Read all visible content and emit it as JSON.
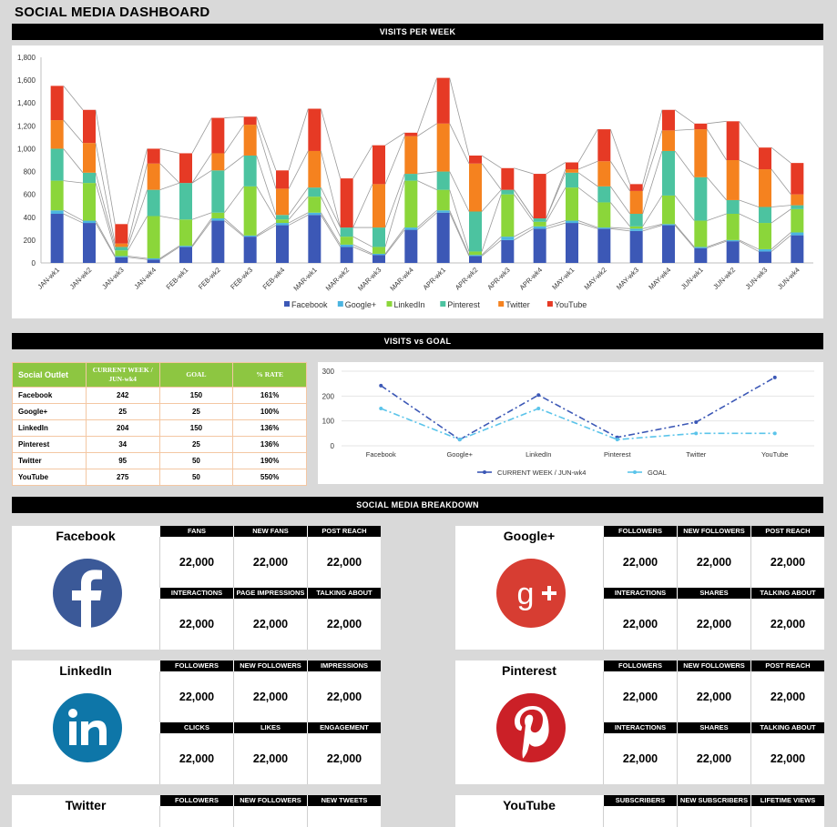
{
  "title": "SOCIAL MEDIA DASHBOARD",
  "sections": {
    "visits_per_week": "VISITS PER WEEK",
    "visits_vs_goal": "VISITS vs GOAL",
    "breakdown": "SOCIAL MEDIA BREAKDOWN"
  },
  "colors": {
    "Facebook": "#3c58b6",
    "Google+": "#4bb4e0",
    "LinkedIn": "#8bd63a",
    "Pinterest": "#4cc3a0",
    "Twitter": "#f5821f",
    "YouTube": "#e63a25",
    "header_green": "#8dc641"
  },
  "chart_data": [
    {
      "type": "bar",
      "stacked": true,
      "categories": [
        "JAN-wk1",
        "JAN-wk2",
        "JAN-wk3",
        "JAN-wk4",
        "FEB-wk1",
        "FEB-wk2",
        "FEB-wk3",
        "FEB-wk4",
        "MAR-wk1",
        "MAR-wk2",
        "MAR-wk3",
        "MAR-wk4",
        "APR-wk1",
        "APR-wk2",
        "APR-wk3",
        "APR-wk4",
        "MAY-wk1",
        "MAY-wk2",
        "MAY-wk3",
        "MAY-wk4",
        "JUN-wk1",
        "JUN-wk2",
        "JUN-wk3",
        "JUN-wk4"
      ],
      "series": [
        {
          "name": "Facebook",
          "values": [
            430,
            350,
            50,
            30,
            140,
            370,
            230,
            330,
            420,
            140,
            70,
            290,
            440,
            60,
            200,
            300,
            350,
            300,
            280,
            330,
            130,
            190,
            100,
            242
          ]
        },
        {
          "name": "Google+",
          "values": [
            30,
            20,
            10,
            10,
            10,
            20,
            10,
            20,
            20,
            20,
            10,
            20,
            20,
            10,
            30,
            20,
            20,
            10,
            20,
            10,
            10,
            10,
            20,
            25
          ]
        },
        {
          "name": "LinkedIn",
          "values": [
            260,
            330,
            50,
            370,
            230,
            50,
            430,
            30,
            140,
            70,
            60,
            410,
            180,
            30,
            370,
            40,
            290,
            220,
            20,
            250,
            230,
            230,
            230,
            204
          ]
        },
        {
          "name": "Pinterest",
          "values": [
            280,
            90,
            30,
            230,
            320,
            370,
            270,
            40,
            80,
            80,
            170,
            60,
            160,
            350,
            40,
            30,
            130,
            140,
            110,
            390,
            380,
            120,
            140,
            34
          ]
        },
        {
          "name": "Twitter",
          "values": [
            250,
            260,
            30,
            230,
            0,
            150,
            270,
            230,
            320,
            0,
            380,
            330,
            420,
            420,
            0,
            0,
            30,
            220,
            200,
            180,
            420,
            350,
            330,
            95
          ]
        },
        {
          "name": "YouTube",
          "values": [
            300,
            290,
            170,
            130,
            260,
            310,
            70,
            160,
            370,
            430,
            340,
            30,
            400,
            70,
            190,
            390,
            60,
            280,
            60,
            180,
            50,
            340,
            190,
            275
          ]
        }
      ],
      "ylim": [
        0,
        1800
      ],
      "yticks": [
        "0",
        "200",
        "400",
        "600",
        "800",
        "1,000",
        "1,200",
        "1,400",
        "1,600",
        "1,800"
      ],
      "legend": "bottom",
      "grid": false
    },
    {
      "type": "line",
      "categories": [
        "Facebook",
        "Google+",
        "LinkedIn",
        "Pinterest",
        "Twitter",
        "YouTube"
      ],
      "series": [
        {
          "name": "CURRENT WEEK / JUN-wk4",
          "values": [
            242,
            25,
            204,
            34,
            95,
            275
          ]
        },
        {
          "name": "GOAL",
          "values": [
            150,
            25,
            150,
            25,
            50,
            50
          ]
        }
      ],
      "ylim": [
        0,
        300
      ],
      "yticks": [
        "0",
        "100",
        "200",
        "300"
      ],
      "legend": "bottom"
    }
  ],
  "goal_table": {
    "headers": [
      "Social Outlet",
      "CURRENT WEEK / JUN-wk4",
      "GOAL",
      "% RATE"
    ],
    "rows": [
      [
        "Facebook",
        "242",
        "150",
        "161%"
      ],
      [
        "Google+",
        "25",
        "25",
        "100%"
      ],
      [
        "LinkedIn",
        "204",
        "150",
        "136%"
      ],
      [
        "Pinterest",
        "34",
        "25",
        "136%"
      ],
      [
        "Twitter",
        "95",
        "50",
        "190%"
      ],
      [
        "YouTube",
        "275",
        "50",
        "550%"
      ]
    ]
  },
  "breakdown": [
    {
      "name": "Facebook",
      "icon": "facebook-logo-icon",
      "metrics": [
        [
          "FANS",
          "22,000"
        ],
        [
          "NEW FANS",
          "22,000"
        ],
        [
          "POST REACH",
          "22,000"
        ],
        [
          "INTERACTIONS",
          "22,000"
        ],
        [
          "PAGE IMPRESSIONS",
          "22,000"
        ],
        [
          "TALKING ABOUT",
          "22,000"
        ]
      ]
    },
    {
      "name": "Google+",
      "icon": "google-plus-logo-icon",
      "metrics": [
        [
          "FOLLOWERS",
          "22,000"
        ],
        [
          "NEW FOLLOWERS",
          "22,000"
        ],
        [
          "POST REACH",
          "22,000"
        ],
        [
          "INTERACTIONS",
          "22,000"
        ],
        [
          "SHARES",
          "22,000"
        ],
        [
          "TALKING ABOUT",
          "22,000"
        ]
      ]
    },
    {
      "name": "LinkedIn",
      "icon": "linkedin-logo-icon",
      "metrics": [
        [
          "FOLLOWERS",
          "22,000"
        ],
        [
          "NEW FOLLOWERS",
          "22,000"
        ],
        [
          "IMPRESSIONS",
          "22,000"
        ],
        [
          "CLICKS",
          "22,000"
        ],
        [
          "LIKES",
          "22,000"
        ],
        [
          "ENGAGEMENT",
          "22,000"
        ]
      ]
    },
    {
      "name": "Pinterest",
      "icon": "pinterest-logo-icon",
      "metrics": [
        [
          "FOLLOWERS",
          "22,000"
        ],
        [
          "NEW FOLLOWERS",
          "22,000"
        ],
        [
          "POST REACH",
          "22,000"
        ],
        [
          "INTERACTIONS",
          "22,000"
        ],
        [
          "SHARES",
          "22,000"
        ],
        [
          "TALKING ABOUT",
          "22,000"
        ]
      ]
    },
    {
      "name": "Twitter",
      "icon": "twitter-logo-icon",
      "metrics": [
        [
          "FOLLOWERS",
          ""
        ],
        [
          "NEW FOLLOWERS",
          ""
        ],
        [
          "NEW TWEETS",
          ""
        ]
      ]
    },
    {
      "name": "YouTube",
      "icon": "youtube-logo-icon",
      "metrics": [
        [
          "SUBSCRIBERS",
          ""
        ],
        [
          "NEW SUBSCRIBERS",
          ""
        ],
        [
          "LIFETIME VIEWS",
          ""
        ]
      ]
    }
  ]
}
